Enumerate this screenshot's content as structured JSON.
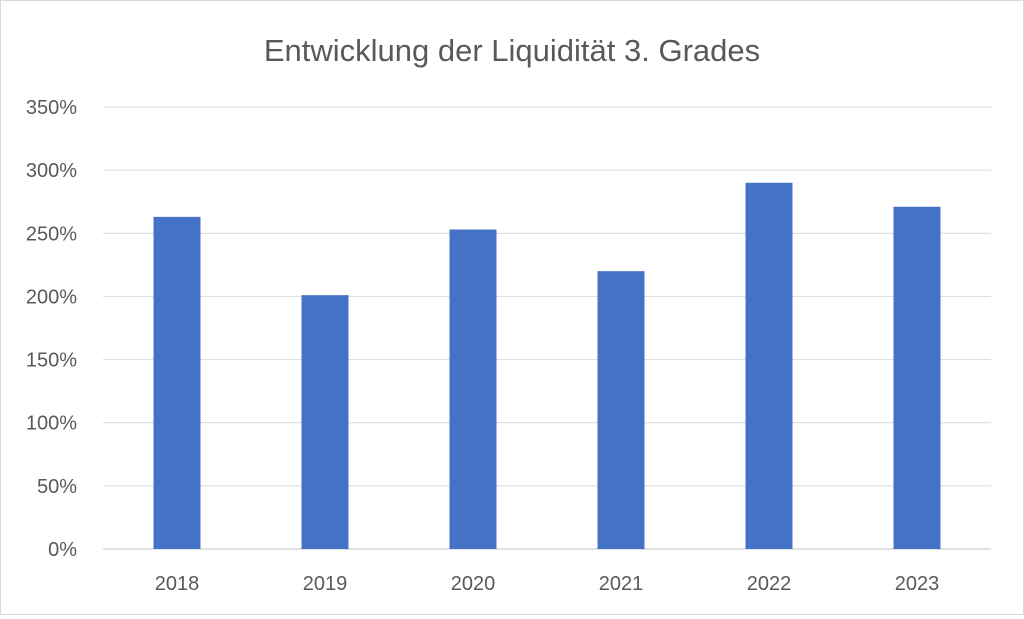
{
  "chart_data": {
    "type": "bar",
    "title": "Entwicklung der Liquidität 3. Grades",
    "xlabel": "",
    "ylabel": "",
    "categories": [
      "2018",
      "2019",
      "2020",
      "2021",
      "2022",
      "2023"
    ],
    "values": [
      263,
      201,
      253,
      220,
      290,
      271
    ],
    "value_unit": "%",
    "ylim": [
      0,
      350
    ],
    "yticks": [
      0,
      50,
      100,
      150,
      200,
      250,
      300,
      350
    ],
    "ytick_labels": [
      "0%",
      "50%",
      "100%",
      "150%",
      "200%",
      "250%",
      "300%",
      "350%"
    ],
    "grid": true,
    "legend": "none",
    "bar_color": "#4472C4"
  }
}
